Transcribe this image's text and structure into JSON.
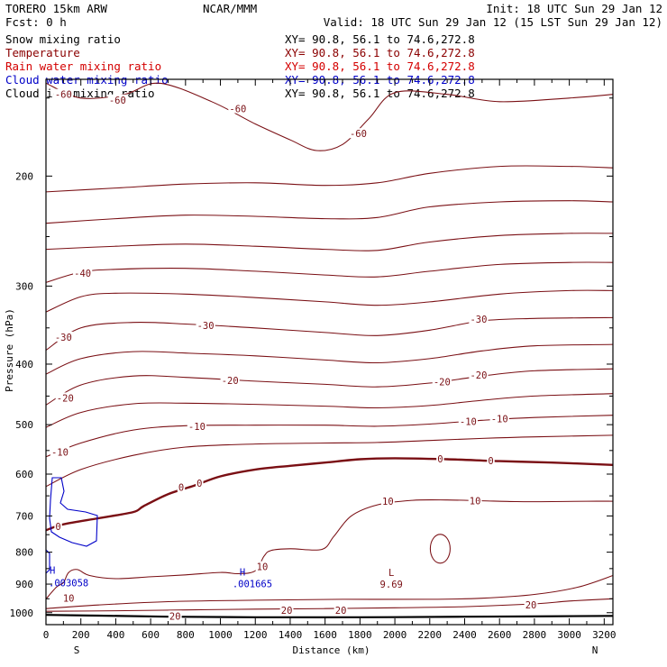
{
  "header": {
    "model": "TORERO  15km ARW",
    "center": "NCAR/MMM",
    "init": "Init: 18 UTC Sun 29 Jan 12",
    "fcst": "Fcst:    0 h",
    "valid": "Valid: 18 UTC Sun 29 Jan 12 (15 LST Sun 29 Jan 12)"
  },
  "legend": [
    {
      "label": "Snow mixing ratio",
      "xy": "XY=  90.8, 56.1 to  74.6,272.8",
      "color": "#000000"
    },
    {
      "label": "Temperature",
      "xy": "XY=  90.8, 56.1 to  74.6,272.8",
      "color": "#8b0000"
    },
    {
      "label": "Rain water mixing ratio",
      "xy": "XY=  90.8, 56.1 to  74.6,272.8",
      "color": "#d40000"
    },
    {
      "label": "Cloud water mixing ratio",
      "xy": "XY=  90.8, 56.1 to  74.6,272.8",
      "color": "#0000c8"
    },
    {
      "label": "Cloud ice mixing ratio",
      "xy": "XY=  90.8, 56.1 to  74.6,272.8",
      "color": "#000000"
    }
  ],
  "chart_data": {
    "type": "line",
    "subtype": "cross-section contour",
    "xlabel": "Distance (km)",
    "ylabel": "Pressure (hPa)",
    "xlim": [
      0,
      3250
    ],
    "ylim": [
      1045,
      140
    ],
    "y_scale": "log-pressure",
    "grid": false,
    "x_ticks": [
      0,
      200,
      400,
      600,
      800,
      1000,
      1200,
      1400,
      1600,
      1800,
      2000,
      2200,
      2400,
      2600,
      2800,
      3000,
      3200
    ],
    "y_ticks": [
      200,
      300,
      400,
      500,
      600,
      700,
      800,
      900,
      1000
    ],
    "x_end_labels": {
      "left": "S",
      "right": "N"
    },
    "temperature_contours": [
      {
        "level": -60,
        "points": [
          [
            0,
            142
          ],
          [
            200,
            150
          ],
          [
            450,
            148
          ],
          [
            650,
            142
          ],
          [
            950,
            152
          ],
          [
            1200,
            165
          ],
          [
            1400,
            175
          ],
          [
            1550,
            182
          ],
          [
            1700,
            178
          ],
          [
            1850,
            162
          ],
          [
            2000,
            147
          ],
          [
            2300,
            148
          ],
          [
            2600,
            152
          ],
          [
            3000,
            150
          ],
          [
            3250,
            148
          ]
        ]
      },
      {
        "level": -55,
        "points": [
          [
            0,
            212
          ],
          [
            400,
            209
          ],
          [
            800,
            206
          ],
          [
            1200,
            205
          ],
          [
            1600,
            207
          ],
          [
            1900,
            205
          ],
          [
            2200,
            198
          ],
          [
            2600,
            193
          ],
          [
            3000,
            193
          ],
          [
            3250,
            194
          ]
        ]
      },
      {
        "level": -50,
        "points": [
          [
            0,
            238
          ],
          [
            400,
            234
          ],
          [
            800,
            231
          ],
          [
            1200,
            232
          ],
          [
            1600,
            234
          ],
          [
            1900,
            233
          ],
          [
            2200,
            224
          ],
          [
            2600,
            220
          ],
          [
            3000,
            219
          ],
          [
            3250,
            220
          ]
        ]
      },
      {
        "level": -45,
        "points": [
          [
            0,
            262
          ],
          [
            400,
            259
          ],
          [
            800,
            257
          ],
          [
            1200,
            259
          ],
          [
            1600,
            262
          ],
          [
            1900,
            263
          ],
          [
            2200,
            255
          ],
          [
            2600,
            249
          ],
          [
            3000,
            247
          ],
          [
            3250,
            247
          ]
        ]
      },
      {
        "level": -40,
        "points": [
          [
            0,
            296
          ],
          [
            200,
            285
          ],
          [
            400,
            282
          ],
          [
            800,
            281
          ],
          [
            1200,
            284
          ],
          [
            1600,
            288
          ],
          [
            1900,
            290
          ],
          [
            2200,
            284
          ],
          [
            2600,
            277
          ],
          [
            3000,
            275
          ],
          [
            3250,
            275
          ]
        ]
      },
      {
        "level": -35,
        "points": [
          [
            0,
            330
          ],
          [
            200,
            312
          ],
          [
            400,
            308
          ],
          [
            800,
            309
          ],
          [
            1200,
            313
          ],
          [
            1600,
            318
          ],
          [
            1900,
            322
          ],
          [
            2200,
            318
          ],
          [
            2600,
            309
          ],
          [
            3000,
            305
          ],
          [
            3250,
            305
          ]
        ]
      },
      {
        "level": -30,
        "points": [
          [
            0,
            380
          ],
          [
            200,
            350
          ],
          [
            500,
            343
          ],
          [
            800,
            345
          ],
          [
            1200,
            350
          ],
          [
            1600,
            356
          ],
          [
            1900,
            360
          ],
          [
            2200,
            353
          ],
          [
            2500,
            341
          ],
          [
            2800,
            338
          ],
          [
            3250,
            337
          ]
        ]
      },
      {
        "level": -25,
        "points": [
          [
            0,
            415
          ],
          [
            200,
            392
          ],
          [
            500,
            382
          ],
          [
            800,
            384
          ],
          [
            1200,
            388
          ],
          [
            1600,
            394
          ],
          [
            1900,
            398
          ],
          [
            2200,
            392
          ],
          [
            2500,
            381
          ],
          [
            2800,
            374
          ],
          [
            3250,
            372
          ]
        ]
      },
      {
        "level": -20,
        "points": [
          [
            0,
            465
          ],
          [
            200,
            432
          ],
          [
            500,
            418
          ],
          [
            800,
            420
          ],
          [
            1200,
            426
          ],
          [
            1600,
            431
          ],
          [
            1900,
            435
          ],
          [
            2200,
            429
          ],
          [
            2500,
            418
          ],
          [
            2800,
            410
          ],
          [
            3250,
            407
          ]
        ]
      },
      {
        "level": -15,
        "points": [
          [
            0,
            505
          ],
          [
            200,
            478
          ],
          [
            500,
            463
          ],
          [
            800,
            462
          ],
          [
            1200,
            464
          ],
          [
            1600,
            467
          ],
          [
            1900,
            470
          ],
          [
            2200,
            466
          ],
          [
            2500,
            457
          ],
          [
            2800,
            450
          ],
          [
            3250,
            446
          ]
        ]
      },
      {
        "level": -10,
        "points": [
          [
            0,
            563
          ],
          [
            200,
            535
          ],
          [
            500,
            510
          ],
          [
            800,
            502
          ],
          [
            1200,
            501
          ],
          [
            1600,
            501
          ],
          [
            1900,
            503
          ],
          [
            2200,
            499
          ],
          [
            2500,
            492
          ],
          [
            2800,
            487
          ],
          [
            3250,
            483
          ]
        ]
      },
      {
        "level": -5,
        "points": [
          [
            0,
            628
          ],
          [
            200,
            590
          ],
          [
            500,
            560
          ],
          [
            800,
            543
          ],
          [
            1200,
            537
          ],
          [
            1600,
            535
          ],
          [
            1900,
            534
          ],
          [
            2200,
            530
          ],
          [
            2500,
            526
          ],
          [
            2800,
            523
          ],
          [
            3250,
            520
          ]
        ]
      },
      {
        "level": 0,
        "points": [
          [
            0,
            738
          ],
          [
            100,
            722
          ],
          [
            300,
            706
          ],
          [
            500,
            690
          ],
          [
            560,
            675
          ],
          [
            700,
            646
          ],
          [
            850,
            626
          ],
          [
            1000,
            605
          ],
          [
            1200,
            590
          ],
          [
            1400,
            582
          ],
          [
            1600,
            575
          ],
          [
            1800,
            568
          ],
          [
            2000,
            566
          ],
          [
            2300,
            568
          ],
          [
            2600,
            572
          ],
          [
            2900,
            575
          ],
          [
            3250,
            580
          ]
        ]
      },
      {
        "level": 10,
        "points": [
          [
            0,
            951
          ],
          [
            60,
            910
          ],
          [
            100,
            895
          ],
          [
            130,
            862
          ],
          [
            180,
            853
          ],
          [
            250,
            872
          ],
          [
            400,
            882
          ],
          [
            600,
            876
          ],
          [
            800,
            870
          ],
          [
            1000,
            862
          ],
          [
            1100,
            866
          ],
          [
            1200,
            857
          ],
          [
            1250,
            812
          ],
          [
            1290,
            795
          ],
          [
            1400,
            790
          ],
          [
            1580,
            792
          ],
          [
            1650,
            755
          ],
          [
            1750,
            700
          ],
          [
            1900,
            672
          ],
          [
            2100,
            661
          ],
          [
            2300,
            660
          ],
          [
            2500,
            662
          ],
          [
            2700,
            664
          ],
          [
            2900,
            664
          ],
          [
            3100,
            663
          ],
          [
            3250,
            663
          ]
        ]
      },
      {
        "level": 15,
        "points": [
          [
            0,
            985
          ],
          [
            300,
            972
          ],
          [
            700,
            960
          ],
          [
            1200,
            955
          ],
          [
            1700,
            952
          ],
          [
            2200,
            952
          ],
          [
            2500,
            948
          ],
          [
            2800,
            935
          ],
          [
            3050,
            910
          ],
          [
            3250,
            872
          ]
        ]
      },
      {
        "level": 20,
        "points": [
          [
            0,
            995
          ],
          [
            400,
            993
          ],
          [
            800,
            990
          ],
          [
            1200,
            987
          ],
          [
            1600,
            985
          ],
          [
            2000,
            982
          ],
          [
            2400,
            978
          ],
          [
            2800,
            968
          ],
          [
            3000,
            958
          ],
          [
            3250,
            950
          ]
        ]
      }
    ],
    "temperature_low": {
      "label": "L",
      "value": "9.69",
      "x": 1980,
      "p": 862
    },
    "temperature_local_loop": {
      "x_center": 2260,
      "p_center": 790
    },
    "cloud_water": {
      "highs": [
        {
          "label": "H",
          "value": ".001665",
          "x": 1110,
          "p": 880
        },
        {
          "label": "H",
          "value": ".003058",
          "x": 60,
          "p": 883
        }
      ]
    },
    "snow_surface": {
      "points": [
        [
          0,
          1008
        ],
        [
          300,
          1011
        ],
        [
          700,
          1015
        ],
        [
          1200,
          1017
        ],
        [
          1800,
          1017
        ],
        [
          2400,
          1015
        ],
        [
          3250,
          1012
        ]
      ]
    },
    "contour_labels": [
      {
        "text": "-60",
        "x": 100,
        "p": 148
      },
      {
        "text": "-60",
        "x": 410,
        "p": 151
      },
      {
        "text": "-60",
        "x": 1100,
        "p": 156
      },
      {
        "text": "-60",
        "x": 1790,
        "p": 171
      },
      {
        "text": "-40",
        "x": 210,
        "p": 286
      },
      {
        "text": "-30",
        "x": 100,
        "p": 362
      },
      {
        "text": "-30",
        "x": 915,
        "p": 347
      },
      {
        "text": "-30",
        "x": 2480,
        "p": 339
      },
      {
        "text": "-20",
        "x": 1055,
        "p": 425
      },
      {
        "text": "-20",
        "x": 2270,
        "p": 427
      },
      {
        "text": "-20",
        "x": 2480,
        "p": 416
      },
      {
        "text": "-20",
        "x": 110,
        "p": 453
      },
      {
        "text": "-10",
        "x": 865,
        "p": 503
      },
      {
        "text": "-10",
        "x": 2420,
        "p": 494
      },
      {
        "text": "-10",
        "x": 2600,
        "p": 489
      },
      {
        "text": "-10",
        "x": 80,
        "p": 553
      },
      {
        "text": "0",
        "x": 2260,
        "p": 567
      },
      {
        "text": "0",
        "x": 2550,
        "p": 571
      },
      {
        "text": "0",
        "x": 775,
        "p": 630
      },
      {
        "text": "0",
        "x": 880,
        "p": 620
      },
      {
        "text": "0",
        "x": 70,
        "p": 728
      },
      {
        "text": "10",
        "x": 1960,
        "p": 663
      },
      {
        "text": "10",
        "x": 2460,
        "p": 662
      },
      {
        "text": "10",
        "x": 1240,
        "p": 844
      },
      {
        "text": "10",
        "x": 130,
        "p": 947
      },
      {
        "text": "20",
        "x": 740,
        "p": 1012
      },
      {
        "text": "20",
        "x": 1380,
        "p": 991
      },
      {
        "text": "20",
        "x": 1690,
        "p": 991
      },
      {
        "text": "20",
        "x": 2780,
        "p": 972
      }
    ]
  }
}
